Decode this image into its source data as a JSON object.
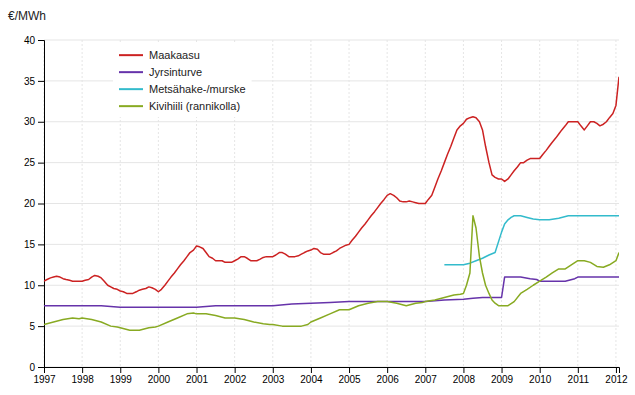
{
  "chart_data": {
    "type": "line",
    "y_label": "€/MWh",
    "xlim": [
      1997,
      2012.08
    ],
    "ylim": [
      0,
      40
    ],
    "xticks": [
      1997,
      1998,
      1999,
      2000,
      2001,
      2002,
      2003,
      2004,
      2005,
      2006,
      2007,
      2008,
      2009,
      2010,
      2011,
      2012
    ],
    "yticks": [
      0,
      5,
      10,
      15,
      20,
      25,
      30,
      35,
      40
    ],
    "grid": true,
    "legend": "upper left",
    "series": [
      {
        "name": "Maakaasu",
        "color": "#cc2222",
        "x": [
          1997.0,
          1997.08,
          1997.17,
          1997.25,
          1997.33,
          1997.42,
          1997.5,
          1997.58,
          1997.67,
          1997.75,
          1997.83,
          1997.92,
          1998.0,
          1998.08,
          1998.17,
          1998.25,
          1998.33,
          1998.42,
          1998.5,
          1998.58,
          1998.67,
          1998.75,
          1998.83,
          1998.92,
          1999.0,
          1999.08,
          1999.17,
          1999.25,
          1999.33,
          1999.42,
          1999.5,
          1999.58,
          1999.67,
          1999.75,
          1999.83,
          1999.92,
          2000.0,
          2000.08,
          2000.17,
          2000.25,
          2000.33,
          2000.42,
          2000.5,
          2000.58,
          2000.67,
          2000.75,
          2000.83,
          2000.92,
          2001.0,
          2001.08,
          2001.17,
          2001.25,
          2001.33,
          2001.42,
          2001.5,
          2001.58,
          2001.67,
          2001.75,
          2001.83,
          2001.92,
          2002.0,
          2002.08,
          2002.17,
          2002.25,
          2002.33,
          2002.42,
          2002.5,
          2002.58,
          2002.67,
          2002.75,
          2002.83,
          2002.92,
          2003.0,
          2003.08,
          2003.17,
          2003.25,
          2003.33,
          2003.42,
          2003.5,
          2003.58,
          2003.67,
          2003.75,
          2003.83,
          2003.92,
          2004.0,
          2004.08,
          2004.17,
          2004.25,
          2004.33,
          2004.42,
          2004.5,
          2004.58,
          2004.67,
          2004.75,
          2004.83,
          2004.92,
          2005.0,
          2005.08,
          2005.17,
          2005.25,
          2005.33,
          2005.42,
          2005.5,
          2005.58,
          2005.67,
          2005.75,
          2005.83,
          2005.92,
          2006.0,
          2006.08,
          2006.17,
          2006.25,
          2006.33,
          2006.42,
          2006.5,
          2006.58,
          2006.67,
          2006.75,
          2006.83,
          2006.92,
          2007.0,
          2007.08,
          2007.17,
          2007.25,
          2007.33,
          2007.42,
          2007.5,
          2007.58,
          2007.67,
          2007.75,
          2007.83,
          2007.92,
          2008.0,
          2008.08,
          2008.17,
          2008.25,
          2008.33,
          2008.42,
          2008.5,
          2008.58,
          2008.67,
          2008.75,
          2008.83,
          2008.92,
          2009.0,
          2009.08,
          2009.17,
          2009.25,
          2009.33,
          2009.42,
          2009.5,
          2009.58,
          2009.67,
          2009.75,
          2009.83,
          2009.92,
          2010.0,
          2010.08,
          2010.17,
          2010.25,
          2010.33,
          2010.42,
          2010.5,
          2010.58,
          2010.67,
          2010.75,
          2010.83,
          2010.92,
          2011.0,
          2011.08,
          2011.17,
          2011.25,
          2011.33,
          2011.42,
          2011.5,
          2011.58,
          2011.67,
          2011.75,
          2011.83,
          2011.92,
          2012.0,
          2012.08
        ],
        "values": [
          10.5,
          10.7,
          10.9,
          11.0,
          11.1,
          11.0,
          10.8,
          10.7,
          10.6,
          10.5,
          10.5,
          10.5,
          10.5,
          10.6,
          10.7,
          11.0,
          11.2,
          11.1,
          10.9,
          10.5,
          10.0,
          9.8,
          9.6,
          9.5,
          9.3,
          9.2,
          9.0,
          9.0,
          9.0,
          9.2,
          9.4,
          9.5,
          9.6,
          9.8,
          9.7,
          9.5,
          9.2,
          9.5,
          10.0,
          10.5,
          11.0,
          11.5,
          12.0,
          12.5,
          13.0,
          13.5,
          14.0,
          14.3,
          14.8,
          14.7,
          14.5,
          14.0,
          13.5,
          13.3,
          13.0,
          13.0,
          13.0,
          12.8,
          12.8,
          12.8,
          13.0,
          13.2,
          13.5,
          13.5,
          13.3,
          13.0,
          13.0,
          13.0,
          13.2,
          13.4,
          13.5,
          13.5,
          13.5,
          13.7,
          14.0,
          14.0,
          13.8,
          13.5,
          13.5,
          13.5,
          13.6,
          13.8,
          14.0,
          14.2,
          14.3,
          14.5,
          14.4,
          14.0,
          13.8,
          13.8,
          13.8,
          14.0,
          14.2,
          14.5,
          14.7,
          14.9,
          15.0,
          15.5,
          16.0,
          16.5,
          17.0,
          17.5,
          18.0,
          18.5,
          19.0,
          19.5,
          20.0,
          20.5,
          21.0,
          21.2,
          21.0,
          20.7,
          20.3,
          20.2,
          20.2,
          20.3,
          20.2,
          20.1,
          20.0,
          20.0,
          20.0,
          20.5,
          21.0,
          22.0,
          23.0,
          24.0,
          25.0,
          26.0,
          27.0,
          28.0,
          29.0,
          29.5,
          29.8,
          30.3,
          30.5,
          30.6,
          30.5,
          30.0,
          29.0,
          27.0,
          25.0,
          23.5,
          23.2,
          23.0,
          23.0,
          22.7,
          23.0,
          23.5,
          24.0,
          24.5,
          25.0,
          25.0,
          25.3,
          25.5,
          25.5,
          25.5,
          25.5,
          26.0,
          26.5,
          27.0,
          27.5,
          28.0,
          28.5,
          29.0,
          29.5,
          30.0,
          30.0,
          30.0,
          30.0,
          29.5,
          29.0,
          29.5,
          30.0,
          30.0,
          29.8,
          29.5,
          29.7,
          30.0,
          30.5,
          31.0,
          32.0,
          35.5
        ]
      },
      {
        "name": "Jyrsinturve",
        "color": "#6633aa",
        "x": [
          1997.0,
          1997.5,
          1998.0,
          1998.5,
          1999.0,
          1999.5,
          2000.0,
          2000.5,
          2001.0,
          2001.5,
          2002.0,
          2002.5,
          2003.0,
          2003.5,
          2004.0,
          2004.5,
          2005.0,
          2005.5,
          2006.0,
          2006.5,
          2007.0,
          2007.5,
          2008.0,
          2008.25,
          2008.5,
          2008.75,
          2008.92,
          2009.0,
          2009.08,
          2009.25,
          2009.5,
          2009.75,
          2009.92,
          2010.0,
          2010.33,
          2010.67,
          2010.92,
          2011.0,
          2011.33,
          2011.67,
          2011.92,
          2012.0,
          2012.08
        ],
        "values": [
          7.5,
          7.5,
          7.5,
          7.5,
          7.3,
          7.3,
          7.3,
          7.3,
          7.3,
          7.5,
          7.5,
          7.5,
          7.5,
          7.7,
          7.8,
          7.9,
          8.0,
          8.0,
          8.0,
          8.0,
          8.0,
          8.2,
          8.3,
          8.4,
          8.5,
          8.5,
          8.5,
          8.5,
          11.0,
          11.0,
          11.0,
          10.8,
          10.7,
          10.5,
          10.5,
          10.5,
          10.8,
          11.0,
          11.0,
          11.0,
          11.0,
          11.0,
          11.0
        ]
      },
      {
        "name": "Metsähake-/murske",
        "color": "#33bbcc",
        "x": [
          2007.5,
          2007.67,
          2007.83,
          2008.0,
          2008.17,
          2008.33,
          2008.5,
          2008.67,
          2008.83,
          2009.0,
          2009.08,
          2009.17,
          2009.25,
          2009.33,
          2009.5,
          2009.67,
          2009.83,
          2010.0,
          2010.25,
          2010.5,
          2010.75,
          2011.0,
          2011.25,
          2011.5,
          2011.75,
          2012.0,
          2012.08
        ],
        "values": [
          12.5,
          12.5,
          12.5,
          12.5,
          12.7,
          13.0,
          13.3,
          13.7,
          14.0,
          16.5,
          17.5,
          18.0,
          18.3,
          18.5,
          18.5,
          18.3,
          18.1,
          18.0,
          18.0,
          18.2,
          18.5,
          18.5,
          18.5,
          18.5,
          18.5,
          18.5,
          18.5
        ]
      },
      {
        "name": "Kivihiili (rannikolla)",
        "color": "#88aa22",
        "x": [
          1997.0,
          1997.25,
          1997.5,
          1997.75,
          1997.92,
          1998.0,
          1998.25,
          1998.5,
          1998.75,
          1998.92,
          1999.0,
          1999.25,
          1999.5,
          1999.75,
          1999.92,
          2000.0,
          2000.25,
          2000.5,
          2000.75,
          2000.92,
          2001.0,
          2001.25,
          2001.5,
          2001.75,
          2001.92,
          2002.0,
          2002.25,
          2002.5,
          2002.75,
          2002.92,
          2003.0,
          2003.25,
          2003.5,
          2003.75,
          2003.92,
          2004.0,
          2004.25,
          2004.5,
          2004.75,
          2004.92,
          2005.0,
          2005.25,
          2005.5,
          2005.75,
          2005.92,
          2006.0,
          2006.25,
          2006.5,
          2006.75,
          2006.92,
          2007.0,
          2007.25,
          2007.5,
          2007.75,
          2007.92,
          2008.0,
          2008.08,
          2008.17,
          2008.25,
          2008.33,
          2008.42,
          2008.5,
          2008.58,
          2008.67,
          2008.75,
          2008.83,
          2008.92,
          2009.0,
          2009.17,
          2009.33,
          2009.5,
          2009.67,
          2009.83,
          2010.0,
          2010.17,
          2010.33,
          2010.5,
          2010.67,
          2010.83,
          2011.0,
          2011.17,
          2011.33,
          2011.5,
          2011.67,
          2011.83,
          2012.0,
          2012.08
        ],
        "values": [
          5.2,
          5.5,
          5.8,
          6.0,
          5.9,
          6.0,
          5.8,
          5.5,
          5.0,
          4.9,
          4.8,
          4.5,
          4.5,
          4.8,
          4.9,
          5.0,
          5.5,
          6.0,
          6.5,
          6.6,
          6.5,
          6.5,
          6.3,
          6.0,
          6.0,
          6.0,
          5.8,
          5.5,
          5.3,
          5.2,
          5.2,
          5.0,
          5.0,
          5.0,
          5.2,
          5.5,
          6.0,
          6.5,
          7.0,
          7.0,
          7.0,
          7.5,
          7.8,
          8.0,
          8.0,
          8.0,
          7.8,
          7.5,
          7.8,
          7.9,
          8.0,
          8.2,
          8.5,
          8.8,
          8.9,
          9.0,
          10.0,
          11.5,
          18.5,
          17.0,
          13.5,
          11.5,
          10.0,
          9.0,
          8.2,
          7.8,
          7.5,
          7.5,
          7.5,
          8.0,
          9.0,
          9.5,
          10.0,
          10.5,
          11.0,
          11.5,
          12.0,
          12.0,
          12.5,
          13.0,
          13.0,
          12.8,
          12.3,
          12.2,
          12.5,
          13.0,
          14.0
        ]
      }
    ]
  }
}
